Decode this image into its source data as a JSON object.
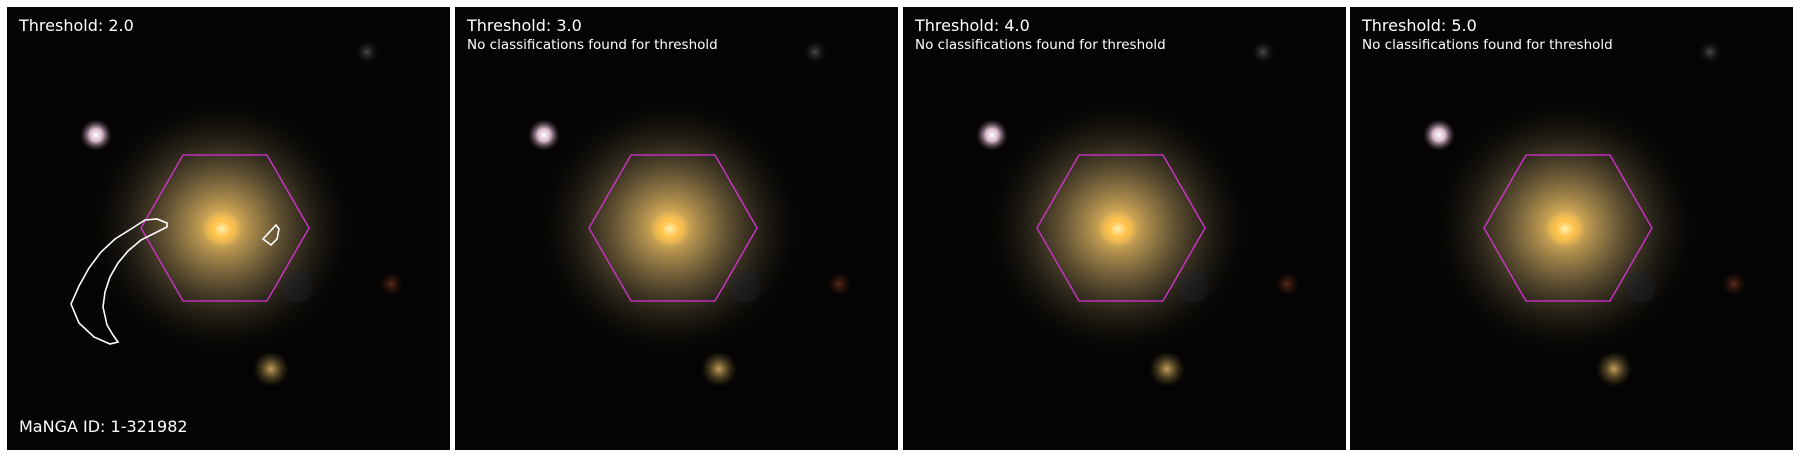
{
  "panels": [
    {
      "title": "Threshold: 2.0",
      "note": "",
      "footer": "MaNGA ID: 1-321982"
    },
    {
      "title": "Threshold: 3.0",
      "note": "No classifications found for threshold",
      "footer": ""
    },
    {
      "title": "Threshold: 4.0",
      "note": "No classifications found for threshold",
      "footer": ""
    },
    {
      "title": "Threshold: 5.0",
      "note": "No classifications found for threshold",
      "footer": ""
    }
  ],
  "colors": {
    "background": "#050403",
    "galaxy_core": "#ffc24a",
    "galaxy_halo": "#b69658",
    "ifu_hexagon": "#d633d6",
    "contour": "#ffffff",
    "separator": "#ffffff"
  }
}
